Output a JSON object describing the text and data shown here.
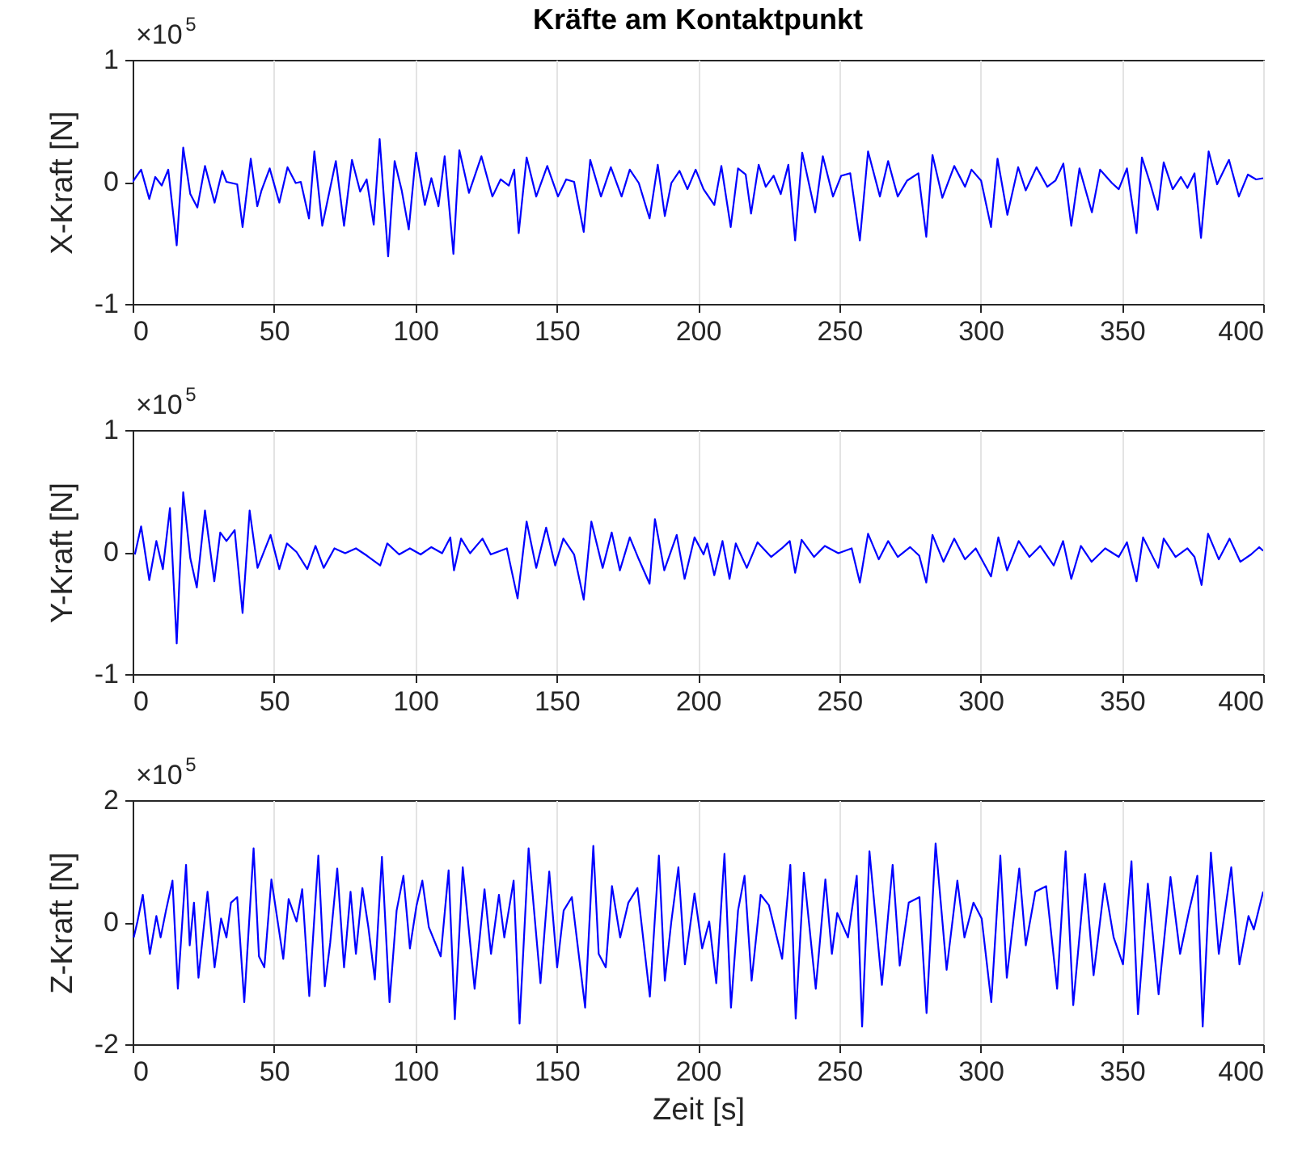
{
  "chart_data": [
    {
      "type": "line",
      "title": "Kräfte am Kontaktpunkt",
      "ylabel": "X-Kraft [N]",
      "annotations": [
        "×10$^{5}$"
      ],
      "color": "#0000ff",
      "grid": "x",
      "xlim": [
        0,
        400
      ],
      "xticks": [
        0,
        50,
        100,
        150,
        200,
        250,
        300,
        350,
        400
      ],
      "ylim": [
        -1,
        1
      ],
      "yticks": [
        -1,
        0,
        1
      ],
      "x": [
        0,
        3,
        5.9,
        8,
        10.3,
        12.6,
        15.6,
        17.9,
        20.4,
        22.9,
        25.6,
        29,
        31.7,
        33.2,
        37,
        38.9,
        41.8,
        44.1,
        45.6,
        48.5,
        51.9,
        54.8,
        57.7,
        59.5,
        62.4,
        64.3,
        67.1,
        71.9,
        74.8,
        77.6,
        80.5,
        82.8,
        85.3,
        87.4,
        90.4,
        92.7,
        95.2,
        97.7,
        100.3,
        103.4,
        105.7,
        108.2,
        110.4,
        113.5,
        115.6,
        119,
        123.4,
        127.3,
        130.2,
        133.1,
        135,
        136.6,
        139.4,
        142.8,
        146.7,
        150.5,
        153.4,
        156.2,
        159.6,
        161.9,
        165.7,
        169.2,
        173,
        175.9,
        179.1,
        182.9,
        185.8,
        188.3,
        190.6,
        193.5,
        196.3,
        199.2,
        202,
        205.8,
        208.3,
        211.6,
        214.2,
        216.9,
        218.8,
        221.5,
        224,
        226.8,
        229.3,
        232,
        234.4,
        236.9,
        241.5,
        244.2,
        247.8,
        250.7,
        253.9,
        257.3,
        260.2,
        264.4,
        267.3,
        270.7,
        274,
        278,
        280.8,
        283,
        286.5,
        290.7,
        294.5,
        296.8,
        300.2,
        303.7,
        306,
        309.5,
        313.3,
        316,
        319.8,
        323.6,
        326.5,
        329.3,
        332.1,
        335,
        339.4,
        342.3,
        346.5,
        348.9,
        351.8,
        355.2,
        357.1,
        360,
        362.7,
        364.8,
        368,
        370.9,
        373.2,
        375.7,
        378,
        380.7,
        383.7,
        387.9,
        391.4,
        394.6,
        397.5,
        400
      ],
      "values": [
        0,
        0.1,
        -0.14,
        0.04,
        -0.03,
        0.1,
        -0.52,
        0.28,
        -0.1,
        -0.21,
        0.13,
        -0.17,
        0.09,
        0,
        -0.02,
        -0.37,
        0.19,
        -0.2,
        -0.07,
        0.11,
        -0.17,
        0.12,
        -0.01,
        0,
        -0.3,
        0.25,
        -0.36,
        0.17,
        -0.36,
        0.18,
        -0.08,
        0.02,
        -0.35,
        0.35,
        -0.61,
        0.17,
        -0.07,
        -0.39,
        0.24,
        -0.19,
        0.03,
        -0.2,
        0.21,
        -0.59,
        0.26,
        -0.09,
        0.21,
        -0.12,
        0.02,
        -0.03,
        0.1,
        -0.42,
        0.2,
        -0.12,
        0.13,
        -0.12,
        0.02,
        0,
        -0.41,
        0.18,
        -0.12,
        0.12,
        -0.12,
        0.1,
        -0.01,
        -0.3,
        0.14,
        -0.28,
        -0.01,
        0.09,
        -0.06,
        0.1,
        -0.06,
        -0.19,
        0.13,
        -0.37,
        0.11,
        0.06,
        -0.26,
        0.14,
        -0.04,
        0.05,
        -0.1,
        0.14,
        -0.48,
        0.24,
        -0.25,
        0.21,
        -0.12,
        0.05,
        0.07,
        -0.48,
        0.25,
        -0.12,
        0.17,
        -0.12,
        0.01,
        0.07,
        -0.45,
        0.22,
        -0.13,
        0.13,
        -0.04,
        0.1,
        0.01,
        -0.37,
        0.19,
        -0.27,
        0.12,
        -0.07,
        0.12,
        -0.04,
        0.01,
        0.15,
        -0.36,
        0.11,
        -0.25,
        0.1,
        -0.01,
        -0.06,
        0.11,
        -0.42,
        0.2,
        -0.01,
        -0.23,
        0.16,
        -0.06,
        0.04,
        -0.05,
        0.07,
        -0.46,
        0.25,
        -0.02,
        0.18,
        -0.12,
        0.06,
        0.02,
        0.03
      ]
    },
    {
      "type": "line",
      "ylabel": "Y-Kraft [N]",
      "annotations": [
        "×10$^{5}$"
      ],
      "color": "#0000ff",
      "grid": "x",
      "xlim": [
        0,
        400
      ],
      "xticks": [
        0,
        50,
        100,
        150,
        200,
        250,
        300,
        350,
        400
      ],
      "ylim": [
        -1,
        1
      ],
      "yticks": [
        -1,
        0,
        1
      ],
      "x": [
        0.8,
        3,
        5.9,
        8.4,
        10.7,
        13.2,
        15.6,
        17.9,
        20.4,
        22.7,
        25.6,
        28.9,
        31,
        33.2,
        36.1,
        38.9,
        41.4,
        44.2,
        48.8,
        51.9,
        54.6,
        58,
        61.8,
        64.7,
        67.6,
        71.4,
        75.2,
        79,
        82.9,
        87.6,
        90.1,
        94.3,
        98.1,
        101.9,
        105.7,
        109.5,
        112.4,
        113.7,
        116.2,
        119.4,
        123.8,
        126.7,
        132.4,
        136.2,
        139.4,
        142.8,
        146.3,
        149.5,
        152.4,
        156.2,
        159.6,
        162.3,
        166.3,
        169.5,
        172.4,
        175.9,
        179.1,
        182.9,
        184.8,
        188.1,
        192.5,
        195.3,
        198.8,
        202,
        203.3,
        205.8,
        208.7,
        211.2,
        213.4,
        217.3,
        221.1,
        225.9,
        229.7,
        232.5,
        234.4,
        236.7,
        241.1,
        244.9,
        249.7,
        254.4,
        257.3,
        260.2,
        264,
        267.3,
        270.7,
        275.1,
        278.3,
        280.8,
        283,
        286.9,
        290.7,
        294.5,
        298.3,
        303.7,
        306.3,
        309.4,
        313.5,
        317.3,
        321.1,
        325.9,
        329.2,
        332.1,
        335.5,
        339.3,
        344.1,
        348.9,
        351.8,
        355.2,
        357.5,
        362.9,
        364.8,
        369,
        373.2,
        375.7,
        378.2,
        380.5,
        384.3,
        388.1,
        391.9,
        395.7,
        398.6,
        400
      ],
      "values": [
        -0.02,
        0.21,
        -0.23,
        0.09,
        -0.14,
        0.36,
        -0.75,
        0.49,
        -0.05,
        -0.29,
        0.34,
        -0.24,
        0.16,
        0.09,
        0.18,
        -0.5,
        0.34,
        -0.13,
        0.14,
        -0.14,
        0.07,
        0,
        -0.14,
        0.05,
        -0.13,
        0.03,
        -0.01,
        0.03,
        -0.03,
        -0.11,
        0.07,
        -0.02,
        0.03,
        -0.02,
        0.04,
        -0.01,
        0.12,
        -0.15,
        0.11,
        -0.01,
        0.11,
        -0.02,
        0.03,
        -0.38,
        0.25,
        -0.13,
        0.2,
        -0.11,
        0.11,
        -0.02,
        -0.39,
        0.25,
        -0.13,
        0.16,
        -0.15,
        0.12,
        -0.06,
        -0.26,
        0.27,
        -0.15,
        0.14,
        -0.22,
        0.12,
        -0.02,
        0.07,
        -0.19,
        0.09,
        -0.22,
        0.07,
        -0.13,
        0.08,
        -0.04,
        0.03,
        0.09,
        -0.17,
        0.1,
        -0.04,
        0.05,
        -0.01,
        0.03,
        -0.25,
        0.15,
        -0.06,
        0.09,
        -0.04,
        0.04,
        -0.03,
        -0.25,
        0.14,
        -0.08,
        0.11,
        -0.06,
        0.03,
        -0.2,
        0.12,
        -0.15,
        0.09,
        -0.04,
        0.05,
        -0.11,
        0.09,
        -0.22,
        0.05,
        -0.08,
        0.03,
        -0.04,
        0.08,
        -0.24,
        0.12,
        -0.13,
        0.11,
        -0.04,
        0.03,
        -0.04,
        -0.27,
        0.15,
        -0.06,
        0.11,
        -0.08,
        -0.02,
        0.04,
        0.01
      ]
    },
    {
      "type": "line",
      "ylabel": "Z-Kraft [N]",
      "xlabel": "Zeit [s]",
      "annotations": [
        "×10$^{5}$"
      ],
      "color": "#0000ff",
      "grid": "x",
      "xlim": [
        0,
        400
      ],
      "xticks": [
        0,
        50,
        100,
        150,
        200,
        250,
        300,
        350,
        400
      ],
      "ylim": [
        -2,
        2
      ],
      "yticks": [
        -2,
        0,
        2
      ],
      "x": [
        0.4,
        1.7,
        3.6,
        6.1,
        8.4,
        9.9,
        11.8,
        14.1,
        16,
        18.9,
        20.2,
        21.7,
        23.3,
        26.5,
        29,
        31.3,
        33.2,
        34.8,
        37,
        39.5,
        42.8,
        44.7,
        46.6,
        49.1,
        53.3,
        55.2,
        58,
        60,
        62.5,
        65.7,
        68,
        69.9,
        72.4,
        74.8,
        77.1,
        79,
        81.3,
        83.4,
        85.7,
        88.2,
        90.9,
        93.4,
        95.8,
        98.1,
        100.4,
        102.5,
        104.8,
        109,
        111.8,
        114,
        116.8,
        121,
        124.5,
        126.8,
        129.6,
        131.5,
        134.8,
        136.9,
        140.1,
        144.3,
        147.4,
        150.2,
        152.5,
        155.4,
        160.1,
        163,
        164.9,
        167.4,
        169.6,
        172.5,
        175.4,
        178.6,
        183,
        186.2,
        188.3,
        190.6,
        193.1,
        195.4,
        198.8,
        201.5,
        204,
        206.5,
        209.4,
        211.7,
        214.2,
        216.5,
        219,
        222.2,
        225.1,
        229.8,
        232.7,
        234.6,
        237.5,
        241.7,
        245.1,
        247.4,
        249.3,
        253.1,
        256.2,
        258.1,
        260.7,
        265.1,
        268.9,
        271.4,
        274.6,
        278.4,
        280.9,
        284.1,
        288,
        291.8,
        294.3,
        297.5,
        300.4,
        303.8,
        307,
        309.3,
        313.7,
        316,
        319.4,
        323.2,
        327.1,
        330.1,
        332.8,
        337,
        340,
        343.9,
        347.1,
        350.4,
        353.4,
        355.7,
        359.2,
        363,
        367.2,
        370.6,
        373.8,
        376.7,
        378.6,
        381.5,
        384.3,
        388.7,
        391.6,
        394.8,
        396.7,
        400
      ],
      "values": [
        -0.25,
        0.01,
        0.45,
        -0.52,
        0.1,
        -0.25,
        0.19,
        0.68,
        -1.09,
        0.94,
        -0.38,
        0.32,
        -0.91,
        0.5,
        -0.74,
        0.06,
        -0.25,
        0.32,
        0.41,
        -1.31,
        1.21,
        -0.56,
        -0.74,
        0.7,
        -0.6,
        0.38,
        0.01,
        0.54,
        -1.21,
        1.09,
        -1.05,
        -0.34,
        0.88,
        -0.74,
        0.5,
        -0.52,
        0.56,
        -0.08,
        -0.94,
        1.07,
        -1.31,
        0.19,
        0.76,
        -0.43,
        0.26,
        0.68,
        -0.08,
        -0.56,
        0.85,
        -1.59,
        0.9,
        -1.09,
        0.54,
        -0.52,
        0.45,
        -0.25,
        0.68,
        -1.66,
        1.21,
        -1,
        0.83,
        -0.74,
        0.19,
        0.41,
        -1.4,
        1.25,
        -0.52,
        -0.74,
        0.59,
        -0.25,
        0.32,
        0.56,
        -1.22,
        1.09,
        -0.96,
        0.01,
        0.9,
        -0.69,
        0.47,
        -0.43,
        0.01,
        -1,
        1.12,
        -1.4,
        0.19,
        0.76,
        -0.96,
        0.45,
        0.28,
        -0.6,
        0.94,
        -1.58,
        0.81,
        -1.09,
        0.7,
        -0.52,
        0.15,
        -0.25,
        0.76,
        -1.71,
        1.16,
        -1.03,
        0.94,
        -0.71,
        0.32,
        0.41,
        -1.49,
        1.29,
        -0.78,
        0.68,
        -0.25,
        0.32,
        0.06,
        -1.31,
        1.09,
        -0.91,
        0.88,
        -0.38,
        0.5,
        0.59,
        -1.09,
        1.16,
        -1.36,
        0.79,
        -0.87,
        0.63,
        -0.25,
        -0.69,
        1,
        -1.51,
        0.63,
        -1.18,
        0.74,
        -0.52,
        0.19,
        0.76,
        -1.71,
        1.14,
        -0.52,
        0.9,
        -0.69,
        0.1,
        -0.12,
        0.5
      ]
    }
  ]
}
